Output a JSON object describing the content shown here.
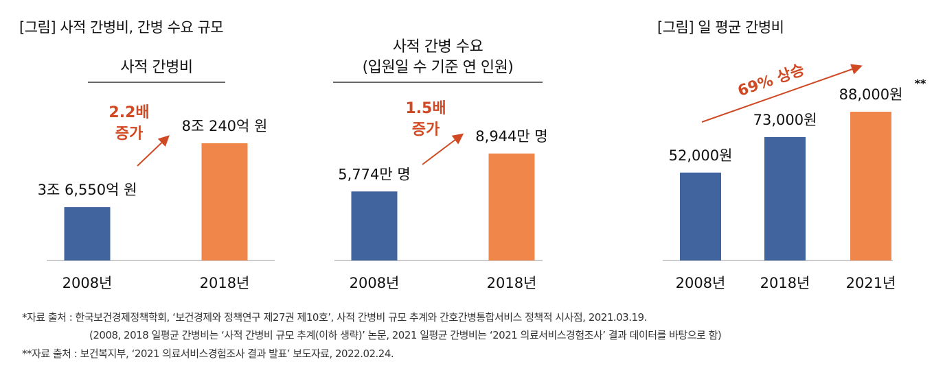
{
  "left_title": "[그림] 사적 간병비, 간병 수요 규모",
  "right_title": "[그림] 일 평균 간병비",
  "colors": {
    "blue": "#41649E",
    "orange": "#F0864A",
    "accent_red": "#CF4A24",
    "axis": "#BBBBBB"
  },
  "chart_data": [
    {
      "type": "bar",
      "title": "사적 간병비",
      "categories": [
        "2008년",
        "2018년"
      ],
      "values": [
        36550,
        80240
      ],
      "unit": "억 원",
      "data_labels": [
        "3조 6,550억 원",
        "8조 240억 원"
      ],
      "annotation": [
        "2.2배",
        "증가"
      ]
    },
    {
      "type": "bar",
      "title": [
        "사적 간병 수요",
        "(입원일 수 기준 연 인원)"
      ],
      "categories": [
        "2008년",
        "2018년"
      ],
      "values": [
        5774,
        8944
      ],
      "unit": "만 명",
      "data_labels": [
        "5,774만 명",
        "8,944만 명"
      ],
      "annotation": [
        "1.5배",
        "증가"
      ]
    },
    {
      "type": "bar",
      "title": "일 평균 간병비",
      "categories": [
        "2008년",
        "2018년",
        "2021년"
      ],
      "values": [
        52000,
        73000,
        88000
      ],
      "unit": "원",
      "data_labels": [
        "52,000원",
        "73,000원",
        "88,000원"
      ],
      "footnote_mark": "**",
      "annotation": [
        "69% 상승"
      ]
    }
  ],
  "sources": [
    "*자료 출처 : 한국보건경제정책학회, ‘보건경제와 정책연구 제27권 제10호’, 사적 간병비 규모 추계와 간호간병통합서비스 정책적 시사점, 2021.03.19.",
    "(2008, 2018 일평균 간병비는 ‘사적 간병비 규모 추계(이하 생략)’ 논문, 2021 일평균 간병비는 ‘2021 의료서비스경험조사’ 결과 데이터를 바탕으로 함)",
    "**자료 출처 : 보건복지부, ‘2021 의료서비스경험조사 결과 발표’ 보도자료, 2022.02.24."
  ]
}
